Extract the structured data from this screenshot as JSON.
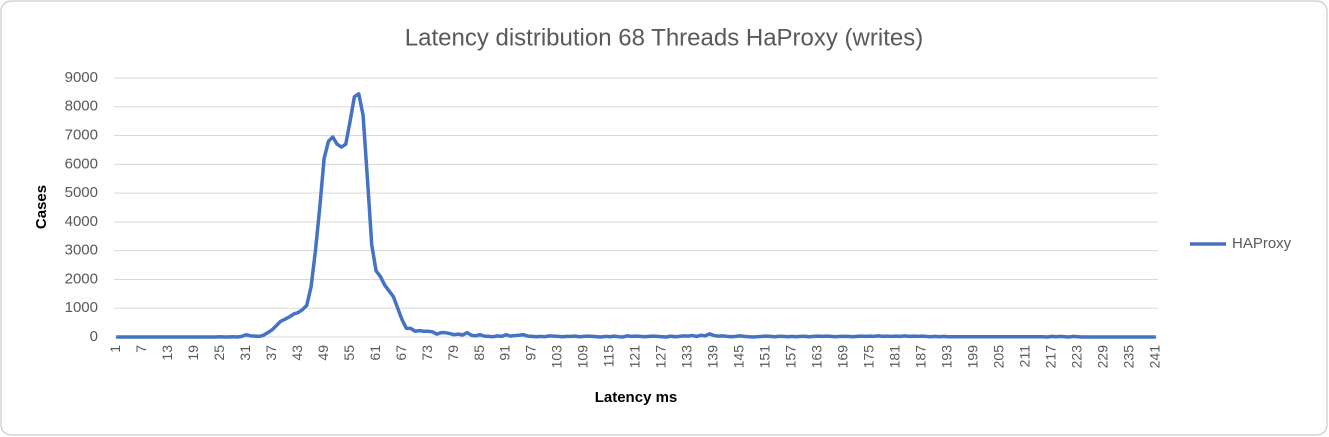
{
  "chart_data": {
    "type": "line",
    "title": "Latency distribution 68 Threads HaProxy (writes)",
    "x_label": "Latency ms",
    "y_label": "Cases",
    "categories": [
      "1",
      null,
      null,
      null,
      null,
      null,
      "7",
      null,
      null,
      null,
      null,
      null,
      "13",
      null,
      null,
      null,
      null,
      null,
      "19",
      null,
      null,
      null,
      null,
      null,
      "25",
      null,
      null,
      null,
      null,
      null,
      "31",
      null,
      null,
      null,
      null,
      null,
      "37",
      null,
      null,
      null,
      null,
      null,
      "43",
      null,
      null,
      null,
      null,
      null,
      "49",
      null,
      null,
      null,
      null,
      null,
      "55",
      null,
      null,
      null,
      null,
      null,
      "61",
      null,
      null,
      null,
      null,
      null,
      "67",
      null,
      null,
      null,
      null,
      null,
      "73",
      null,
      null,
      null,
      null,
      null,
      "79",
      null,
      null,
      null,
      null,
      null,
      "85",
      null,
      null,
      null,
      null,
      null,
      "91",
      null,
      null,
      null,
      null,
      null,
      "97",
      null,
      null,
      null,
      null,
      null,
      "103",
      null,
      null,
      null,
      null,
      null,
      "109",
      null,
      null,
      null,
      null,
      null,
      "115",
      null,
      null,
      null,
      null,
      null,
      "121",
      null,
      null,
      null,
      null,
      null,
      "127",
      null,
      null,
      null,
      null,
      null,
      "133",
      null,
      null,
      null,
      null,
      null,
      "139",
      null,
      null,
      null,
      null,
      null,
      "145",
      null,
      null,
      null,
      null,
      null,
      "151",
      null,
      null,
      null,
      null,
      null,
      "157",
      null,
      null,
      null,
      null,
      null,
      "163",
      null,
      null,
      null,
      null,
      null,
      "169",
      null,
      null,
      null,
      null,
      null,
      "175",
      null,
      null,
      null,
      null,
      null,
      "181",
      null,
      null,
      null,
      null,
      null,
      "187",
      null,
      null,
      null,
      null,
      null,
      "193",
      null,
      null,
      null,
      null,
      null,
      "199",
      null,
      null,
      null,
      null,
      null,
      "205",
      null,
      null,
      null,
      null,
      null,
      "211",
      null,
      null,
      null,
      null,
      null,
      "217",
      null,
      null,
      null,
      null,
      null,
      "223",
      null,
      null,
      null,
      null,
      null,
      "229",
      null,
      null,
      null,
      null,
      null,
      "235",
      null,
      null,
      null,
      null,
      null,
      "241"
    ],
    "series": [
      {
        "name": "HAProxy",
        "color": "#4472c4",
        "values": [
          0,
          0,
          0,
          0,
          0,
          0,
          0,
          0,
          0,
          0,
          0,
          0,
          0,
          0,
          0,
          0,
          0,
          0,
          0,
          0,
          0,
          0,
          0,
          0,
          10,
          0,
          0,
          10,
          0,
          20,
          80,
          40,
          30,
          20,
          60,
          150,
          250,
          400,
          550,
          620,
          700,
          800,
          850,
          950,
          1100,
          1750,
          3000,
          4500,
          6200,
          6800,
          6950,
          6700,
          6600,
          6700,
          7500,
          8350,
          8450,
          7700,
          5500,
          3200,
          2300,
          2100,
          1800,
          1600,
          1400,
          1000,
          600,
          300,
          300,
          200,
          220,
          200,
          200,
          180,
          100,
          150,
          150,
          120,
          80,
          100,
          70,
          150,
          60,
          40,
          80,
          30,
          20,
          10,
          40,
          20,
          80,
          30,
          50,
          60,
          80,
          30,
          20,
          10,
          20,
          10,
          40,
          30,
          20,
          10,
          20,
          20,
          30,
          10,
          20,
          30,
          20,
          10,
          0,
          20,
          10,
          30,
          10,
          0,
          40,
          20,
          30,
          20,
          10,
          20,
          30,
          20,
          10,
          0,
          30,
          10,
          20,
          40,
          30,
          50,
          20,
          60,
          40,
          110,
          50,
          30,
          40,
          20,
          10,
          20,
          40,
          20,
          10,
          0,
          10,
          20,
          30,
          20,
          10,
          20,
          20,
          10,
          20,
          10,
          20,
          20,
          10,
          20,
          30,
          20,
          30,
          20,
          10,
          20,
          20,
          20,
          10,
          20,
          30,
          20,
          30,
          20,
          40,
          20,
          30,
          20,
          30,
          20,
          40,
          20,
          30,
          20,
          30,
          20,
          10,
          20,
          10,
          20,
          10,
          10,
          10,
          10,
          10,
          10,
          10,
          10,
          10,
          10,
          10,
          10,
          10,
          10,
          10,
          10,
          10,
          10,
          10,
          10,
          10,
          10,
          10,
          0,
          20,
          10,
          20,
          10,
          0,
          20,
          10,
          0,
          0,
          0,
          0,
          0,
          0,
          0,
          0,
          0,
          0,
          0,
          0,
          0,
          0,
          0,
          0,
          0,
          0
        ]
      }
    ],
    "ylim": [
      0,
      9000
    ],
    "yticks": [
      0,
      1000,
      2000,
      3000,
      4000,
      5000,
      6000,
      7000,
      8000,
      9000
    ],
    "grid": true,
    "legend": "right"
  }
}
